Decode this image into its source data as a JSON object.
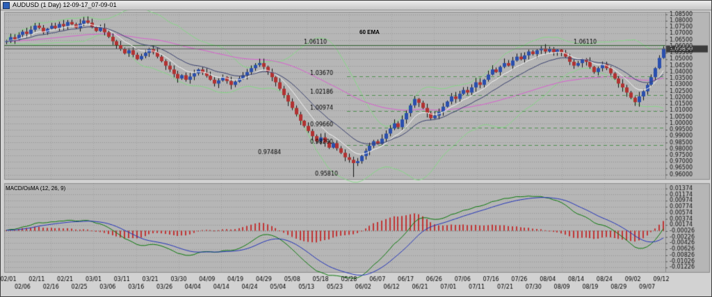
{
  "window": {
    "title": "AUDUSD (1 Day) 12-09-17_07-09-01"
  },
  "chart_data": {
    "type": "candlestick",
    "symbol": "AUDUSD",
    "timeframe": "1 Day",
    "title": "AUDUSD (1 Day) 12-09-17_07-09-01",
    "ema_label": "60 EMA",
    "price_ylim": [
      0.956,
      1.087
    ],
    "closes": [
      1.064,
      1.0672,
      1.0655,
      1.069,
      1.0715,
      1.0698,
      1.073,
      1.0762,
      1.0745,
      1.071,
      1.0738,
      1.076,
      1.0742,
      1.0775,
      1.0758,
      1.079,
      1.0772,
      1.0745,
      1.0778,
      1.0802,
      1.0785,
      1.075,
      1.072,
      1.0745,
      1.071,
      1.0675,
      1.064,
      1.061,
      1.058,
      1.0545,
      1.057,
      1.0535,
      1.05,
      1.0525,
      1.055,
      1.058,
      1.0555,
      1.052,
      1.0485,
      1.045,
      1.042,
      1.0385,
      1.035,
      1.0375,
      1.034,
      1.0365,
      1.039,
      1.042,
      1.0395,
      1.037,
      1.034,
      1.031,
      1.0335,
      1.036,
      1.033,
      1.03,
      1.0325,
      1.035,
      1.0375,
      1.04,
      1.043,
      1.0455,
      1.047,
      1.044,
      1.04,
      1.036,
      1.032,
      1.027,
      1.022,
      1.017,
      1.012,
      1.007,
      1.002,
      0.998,
      0.994,
      0.99,
      0.986,
      0.989,
      0.985,
      0.981,
      0.9845,
      0.9805,
      0.977,
      0.9735,
      0.9715,
      0.969,
      0.9705,
      0.9745,
      0.9785,
      0.9825,
      0.986,
      0.984,
      0.988,
      0.992,
      0.996,
      1.0,
      0.997,
      1.003,
      1.008,
      1.014,
      1.019,
      1.016,
      1.012,
      1.008,
      1.004,
      1.006,
      1.009,
      1.013,
      1.017,
      1.021,
      1.019,
      1.023,
      1.026,
      1.024,
      1.028,
      1.032,
      1.03,
      1.034,
      1.038,
      1.042,
      1.04,
      1.044,
      1.047,
      1.045,
      1.049,
      1.052,
      1.05,
      1.053,
      1.056,
      1.054,
      1.057,
      1.0585,
      1.056,
      1.058,
      1.0555,
      1.0575,
      1.055,
      1.052,
      1.048,
      1.045,
      1.047,
      1.05,
      1.048,
      1.044,
      1.04,
      1.043,
      1.046,
      1.043,
      1.039,
      1.035,
      1.031,
      1.028,
      1.024,
      1.02,
      1.0165,
      1.021,
      1.025,
      1.03,
      1.036,
      1.043,
      1.051,
      1.0585
    ],
    "low_override": {
      "index": 85,
      "low": 0.9581
    },
    "current_price": 1.0585,
    "current_price_label": "1.05850",
    "levels": [
      {
        "label": "1.06110",
        "value": 1.0611,
        "style": "solid",
        "label_x": [
          436,
          824
        ]
      },
      {
        "label": "1.03670",
        "value": 1.0367,
        "style": "dashed",
        "label_x": [
          445
        ]
      },
      {
        "label": "1.02186",
        "value": 1.02186,
        "style": "dashed",
        "label_x": [
          445
        ]
      },
      {
        "label": "1.00974",
        "value": 1.00974,
        "style": "dashed",
        "label_x": [
          445
        ]
      },
      {
        "label": "0.99660",
        "value": 0.9966,
        "style": "dashed",
        "label_x": [
          445
        ]
      },
      {
        "label": "0.98290",
        "value": 0.9829,
        "style": "dashed",
        "label_x": [
          445
        ]
      },
      {
        "label": "0.97484",
        "value": 0.97484,
        "style": "text",
        "label_x": [
          370
        ]
      },
      {
        "label": "0.95810",
        "value": 0.9581,
        "style": "text",
        "label_x": [
          452
        ]
      }
    ],
    "price_axis": [
      "1.08500",
      "1.08000",
      "1.07500",
      "1.07000",
      "1.06500",
      "1.06000",
      "1.05500",
      "1.05000",
      "1.04500",
      "1.04000",
      "1.03500",
      "1.03000",
      "1.02500",
      "1.02000",
      "1.01500",
      "1.01000",
      "1.00500",
      "1.00000",
      "0.99500",
      "0.99000",
      "0.98500",
      "0.98000",
      "0.97500",
      "0.97000",
      "0.96500",
      "0.96000"
    ],
    "macd": {
      "label": "MACD/OsMA (12, 26, 9)",
      "params": [
        12,
        26,
        9
      ],
      "ylim": [
        -0.014,
        0.0155
      ],
      "axis": [
        "0.01374",
        "0.01174",
        "0.00974",
        "0.00774",
        "0.00574",
        "0.00374",
        "0.00174",
        "-0.00026",
        "-0.00226",
        "-0.00426",
        "-0.00626",
        "-0.00826",
        "-0.01026",
        "-0.01226"
      ]
    },
    "time_labels": [
      "02/01",
      "02/06",
      "02/11",
      "02/16",
      "02/21",
      "02/25",
      "03/01",
      "03/06",
      "03/11",
      "03/16",
      "03/21",
      "03/26",
      "03/30",
      "04/04",
      "04/09",
      "04/14",
      "04/19",
      "04/24",
      "04/29",
      "05/04",
      "05/08",
      "05/13",
      "05/18",
      "05/23",
      "05/28",
      "06/02",
      "06/07",
      "06/12",
      "06/17",
      "06/21",
      "06/26",
      "07/01",
      "07/06",
      "07/11",
      "07/16",
      "07/21",
      "07/26",
      "07/30",
      "08/04",
      "08/09",
      "08/14",
      "08/19",
      "08/24",
      "08/29",
      "09/02",
      "09/07",
      "09/12"
    ],
    "colors": {
      "window_bg": "#d2d2d2",
      "panel_bg": "#b6b6b6",
      "up": "#2a4fae",
      "down": "#b23232",
      "wick": "#101010",
      "boll": "#86d886",
      "ema_fast": "#f5f5f5",
      "ema_mid": "#39406e",
      "ema_60": "#d95fd0",
      "level_solid": "#2f5f2f",
      "level_dashed": "#4f8f4f",
      "macd_line": "#0a7a0a",
      "macd_signal": "#2233bb",
      "macd_hist": "#c03434",
      "axis_text": "#101010",
      "current_price_line": "#606060",
      "current_tag_bg": "#3c3c3c"
    }
  }
}
